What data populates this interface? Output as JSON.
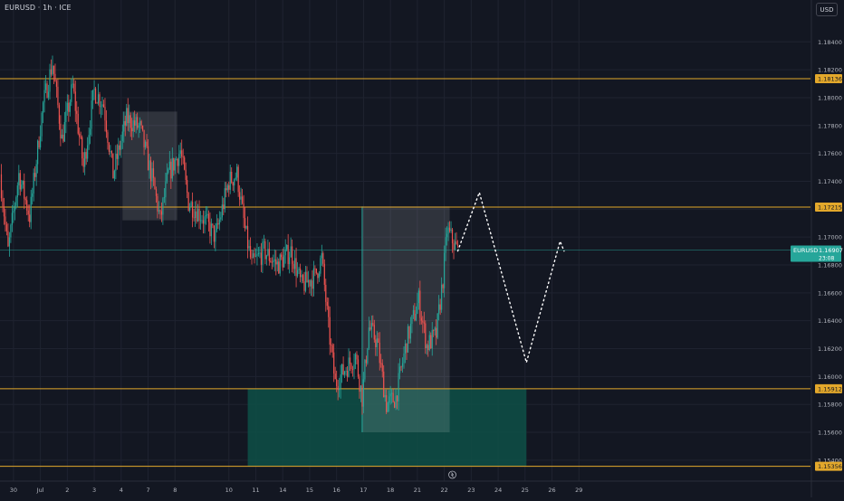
{
  "header": {
    "symbol": "EURUSD · 1h · ICE",
    "currency": "USD"
  },
  "colors": {
    "background": "#131722",
    "up": "#26a69a",
    "down": "#ef5350",
    "level": "#e3a82b",
    "zone": "#0e5047",
    "box": "#3a3a42",
    "grid": "#1f2330",
    "axis_text": "#b2b5be",
    "price_line": "#26a69a",
    "projection": "#ffffff"
  },
  "chart_data": {
    "type": "candlestick",
    "symbol": "EURUSD",
    "interval": "1h",
    "exchange": "ICE",
    "y_axis": {
      "range": [
        1.1525,
        1.187
      ],
      "ticks": [
        "1.18400",
        "1.18200",
        "1.18000",
        "1.17800",
        "1.17600",
        "1.17400",
        "1.17200",
        "1.17000",
        "1.16800",
        "1.16600",
        "1.16400",
        "1.16200",
        "1.16000",
        "1.15800",
        "1.15600",
        "1.15400"
      ]
    },
    "x_axis": {
      "range": [
        -0.5,
        29.6
      ],
      "ticks": [
        {
          "label": "30",
          "x": 0
        },
        {
          "label": "Jul",
          "x": 1
        },
        {
          "label": "2",
          "x": 2
        },
        {
          "label": "3",
          "x": 3
        },
        {
          "label": "4",
          "x": 4
        },
        {
          "label": "7",
          "x": 5
        },
        {
          "label": "8",
          "x": 6
        },
        {
          "label": "10",
          "x": 8
        },
        {
          "label": "11",
          "x": 9
        },
        {
          "label": "14",
          "x": 10
        },
        {
          "label": "15",
          "x": 11
        },
        {
          "label": "16",
          "x": 12
        },
        {
          "label": "17",
          "x": 13
        },
        {
          "label": "18",
          "x": 14
        },
        {
          "label": "21",
          "x": 15
        },
        {
          "label": "22",
          "x": 16
        },
        {
          "label": "23",
          "x": 17
        },
        {
          "label": "24",
          "x": 18
        },
        {
          "label": "25",
          "x": 19
        },
        {
          "label": "26",
          "x": 20
        },
        {
          "label": "29",
          "x": 21
        }
      ]
    },
    "levels": [
      {
        "price": 1.18136,
        "label": "1.18136"
      },
      {
        "price": 1.17215,
        "label": "1.17215"
      },
      {
        "price": 1.15912,
        "label": "1.15912"
      },
      {
        "price": 1.15356,
        "label": "1.15356"
      }
    ],
    "current_price": {
      "price": 1.16907,
      "label": "EURUSD",
      "value": "1.16907",
      "countdown": "23:08"
    },
    "anchors": [
      {
        "x": -0.5,
        "p": 1.1745
      },
      {
        "x": -0.2,
        "p": 1.169
      },
      {
        "x": 0.2,
        "p": 1.1745
      },
      {
        "x": 0.6,
        "p": 1.1715
      },
      {
        "x": 1.1,
        "p": 1.1795
      },
      {
        "x": 1.45,
        "p": 1.1825
      },
      {
        "x": 1.8,
        "p": 1.177
      },
      {
        "x": 2.2,
        "p": 1.1808
      },
      {
        "x": 2.6,
        "p": 1.175
      },
      {
        "x": 3.0,
        "p": 1.1805
      },
      {
        "x": 3.35,
        "p": 1.1795
      },
      {
        "x": 3.7,
        "p": 1.1745
      },
      {
        "x": 4.2,
        "p": 1.1785
      },
      {
        "x": 4.7,
        "p": 1.1778
      },
      {
        "x": 5.2,
        "p": 1.1738
      },
      {
        "x": 5.45,
        "p": 1.1712
      },
      {
        "x": 5.75,
        "p": 1.1745
      },
      {
        "x": 6.2,
        "p": 1.1762
      },
      {
        "x": 6.5,
        "p": 1.1725
      },
      {
        "x": 7.0,
        "p": 1.1715
      },
      {
        "x": 7.5,
        "p": 1.17
      },
      {
        "x": 8.0,
        "p": 1.174
      },
      {
        "x": 8.3,
        "p": 1.1745
      },
      {
        "x": 8.6,
        "p": 1.1705
      },
      {
        "x": 8.85,
        "p": 1.168
      },
      {
        "x": 9.3,
        "p": 1.169
      },
      {
        "x": 9.8,
        "p": 1.168
      },
      {
        "x": 10.3,
        "p": 1.169
      },
      {
        "x": 10.7,
        "p": 1.1665
      },
      {
        "x": 11.2,
        "p": 1.1672
      },
      {
        "x": 11.45,
        "p": 1.1685
      },
      {
        "x": 11.7,
        "p": 1.1635
      },
      {
        "x": 11.95,
        "p": 1.1595
      },
      {
        "x": 12.3,
        "p": 1.1605
      },
      {
        "x": 12.7,
        "p": 1.1615
      },
      {
        "x": 12.95,
        "p": 1.1585
      },
      {
        "x": 13.2,
        "p": 1.1635
      },
      {
        "x": 13.5,
        "p": 1.1625
      },
      {
        "x": 13.85,
        "p": 1.158
      },
      {
        "x": 14.2,
        "p": 1.1585
      },
      {
        "x": 14.6,
        "p": 1.1625
      },
      {
        "x": 15.05,
        "p": 1.1655
      },
      {
        "x": 15.35,
        "p": 1.1622
      },
      {
        "x": 15.7,
        "p": 1.163
      },
      {
        "x": 15.95,
        "p": 1.167
      },
      {
        "x": 16.1,
        "p": 1.1705
      },
      {
        "x": 16.5,
        "p": 1.169
      }
    ],
    "boxes": [
      {
        "name": "range-box-1",
        "x1": 4.05,
        "x2": 6.08,
        "p1": 1.179,
        "p2": 1.1712
      },
      {
        "name": "range-box-2",
        "x1": 12.95,
        "x2": 16.2,
        "p1": 1.1722,
        "p2": 1.156
      }
    ],
    "zone": {
      "name": "demand-zone",
      "x1": 8.7,
      "x2": 19.05,
      "p1": 1.15912,
      "p2": 1.15356
    },
    "projection": [
      {
        "x": 16.5,
        "p": 1.169
      },
      {
        "x": 17.3,
        "p": 1.1732
      },
      {
        "x": 19.05,
        "p": 1.161
      },
      {
        "x": 20.3,
        "p": 1.1697
      },
      {
        "x": 20.45,
        "p": 1.169
      }
    ]
  }
}
